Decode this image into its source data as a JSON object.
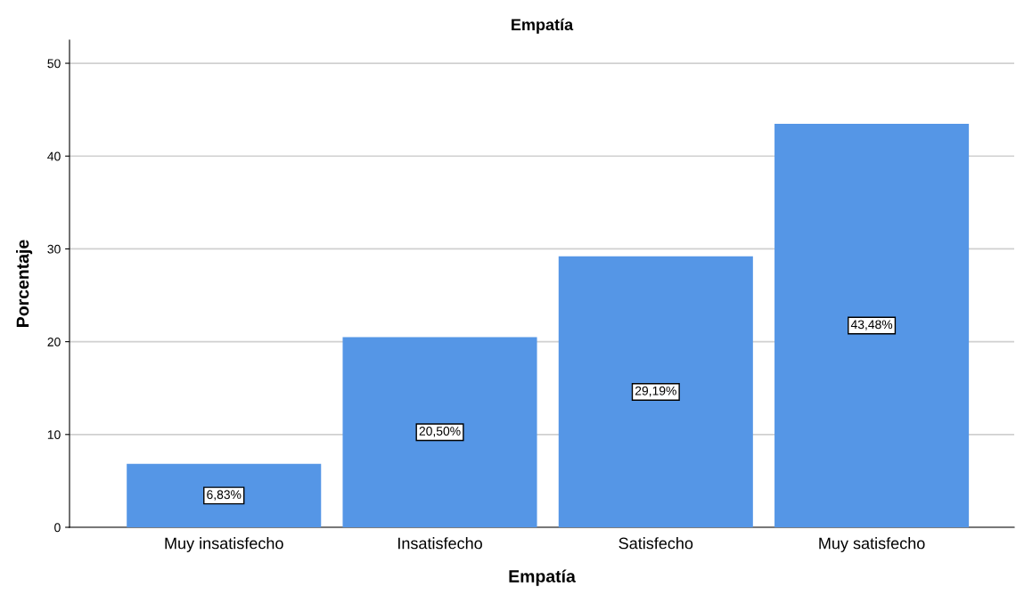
{
  "chart_data": {
    "type": "bar",
    "title": "Empatía",
    "xlabel": "Empatía",
    "ylabel": "Porcentaje",
    "categories": [
      "Muy insatisfecho",
      "Insatisfecho",
      "Satisfecho",
      "Muy satisfecho"
    ],
    "values": [
      6.83,
      20.5,
      29.19,
      43.48
    ],
    "value_labels": [
      "6,83%",
      "20,50%",
      "29,19%",
      "43,48%"
    ],
    "color": "#5596e6",
    "ylim": [
      0,
      52.5
    ],
    "yticks": [
      0,
      10,
      20,
      30,
      40,
      50
    ],
    "grid": "y"
  }
}
